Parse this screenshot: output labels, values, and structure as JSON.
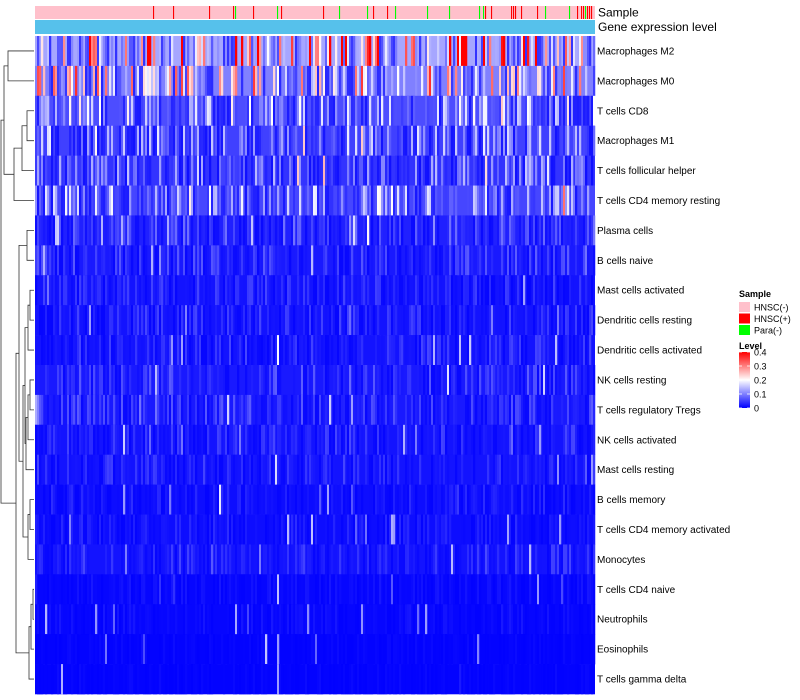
{
  "chart_data": {
    "type": "heatmap",
    "title": "",
    "annotation_tracks": [
      {
        "name": "Sample",
        "legend_title": "Sample"
      },
      {
        "name": "Gene expression level",
        "legend_title": "Level"
      }
    ],
    "rows": [
      {
        "label": "Macrophages M2",
        "mean_level": 0.26
      },
      {
        "label": "Macrophages M0",
        "mean_level": 0.2
      },
      {
        "label": "T cells CD8",
        "mean_level": 0.12
      },
      {
        "label": "Macrophages M1",
        "mean_level": 0.1
      },
      {
        "label": "T cells follicular helper",
        "mean_level": 0.08
      },
      {
        "label": "T cells CD4 memory resting",
        "mean_level": 0.11
      },
      {
        "label": "Plasma cells",
        "mean_level": 0.05
      },
      {
        "label": "B cells naive",
        "mean_level": 0.04
      },
      {
        "label": "Mast cells activated",
        "mean_level": 0.03
      },
      {
        "label": "Dendritic cells resting",
        "mean_level": 0.03
      },
      {
        "label": "Dendritic cells activated",
        "mean_level": 0.03
      },
      {
        "label": "NK cells resting",
        "mean_level": 0.04
      },
      {
        "label": "T cells regulatory  Tregs",
        "mean_level": 0.04
      },
      {
        "label": "NK cells activated",
        "mean_level": 0.03
      },
      {
        "label": "Mast cells resting",
        "mean_level": 0.03
      },
      {
        "label": "B cells memory",
        "mean_level": 0.02
      },
      {
        "label": "T cells CD4 memory activated",
        "mean_level": 0.02
      },
      {
        "label": "Monocytes",
        "mean_level": 0.03
      },
      {
        "label": "T cells CD4 naive",
        "mean_level": 0.01
      },
      {
        "label": "Neutrophils",
        "mean_level": 0.01
      },
      {
        "label": "Eosinophils",
        "mean_level": 0.005
      },
      {
        "label": "T cells gamma delta",
        "mean_level": 0.005
      }
    ],
    "sample_groups": [
      {
        "name": "HNSC(-)",
        "color": "#FFC0CB"
      },
      {
        "name": "HNSC(+)",
        "color": "#FF0000"
      },
      {
        "name": "Para(-)",
        "color": "#00FF00"
      }
    ],
    "color_scale": {
      "title": "Level",
      "range": [
        0,
        0.4
      ],
      "ticks": [
        "0.4",
        "0.3",
        "0.2",
        "0.1",
        "0"
      ],
      "stops": [
        {
          "value": 0,
          "color": "#0000FF"
        },
        {
          "value": 0.2,
          "color": "#FFFFFF"
        },
        {
          "value": 0.4,
          "color": "#FF0000"
        }
      ]
    },
    "expression_track_color": "#56C1EB",
    "dendrogram": "row clustering tree drawn left of the heatmap"
  }
}
